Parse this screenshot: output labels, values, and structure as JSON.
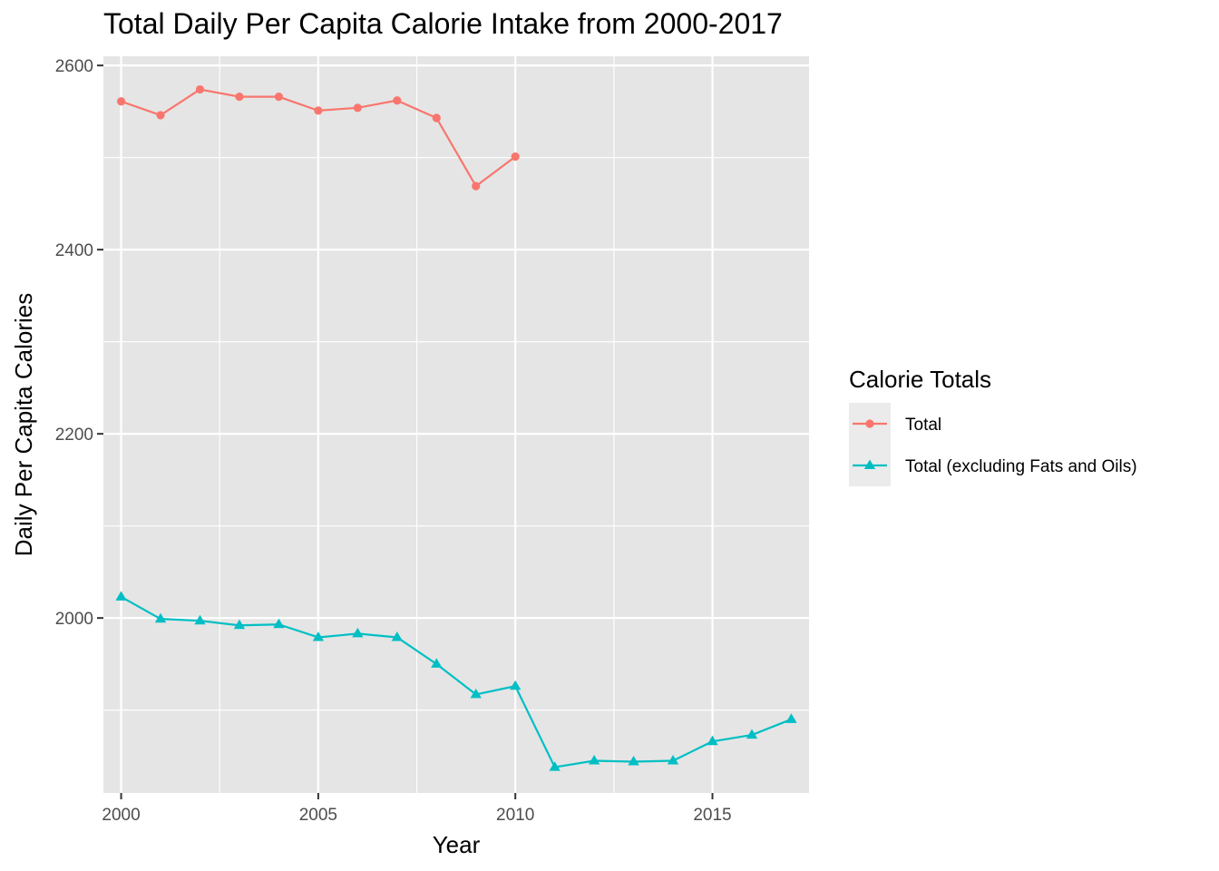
{
  "chart_data": {
    "type": "line",
    "title": "Total Daily Per Capita Calorie Intake from 2000-2017",
    "xlabel": "Year",
    "ylabel": "Daily Per Capita Calories",
    "xlim": [
      1999.55,
      2017.45
    ],
    "ylim": [
      1810,
      2610
    ],
    "x_ticks": [
      2000,
      2005,
      2010,
      2015
    ],
    "y_ticks": [
      2000,
      2200,
      2400,
      2600
    ],
    "grid": true,
    "panel_background": "#e5e5e5",
    "grid_color": "#ffffff",
    "legend": {
      "title": "Calorie Totals",
      "position": "right"
    },
    "series": [
      {
        "name": "Total",
        "color": "#F8766D",
        "marker": "circle",
        "x": [
          2000,
          2001,
          2002,
          2003,
          2004,
          2005,
          2006,
          2007,
          2008,
          2009,
          2010
        ],
        "values": [
          2561,
          2546,
          2574,
          2566,
          2566,
          2551,
          2554,
          2562,
          2543,
          2469,
          2501
        ]
      },
      {
        "name": "Total (excluding Fats and Oils)",
        "color": "#00BFC4",
        "marker": "triangle",
        "x": [
          2000,
          2001,
          2002,
          2003,
          2004,
          2005,
          2006,
          2007,
          2008,
          2009,
          2010,
          2011,
          2012,
          2013,
          2014,
          2015,
          2016,
          2017
        ],
        "values": [
          2023,
          1999,
          1997,
          1992,
          1993,
          1979,
          1983,
          1979,
          1950,
          1917,
          1926,
          1838,
          1845,
          1844,
          1845,
          1866,
          1873,
          1890
        ]
      }
    ]
  }
}
